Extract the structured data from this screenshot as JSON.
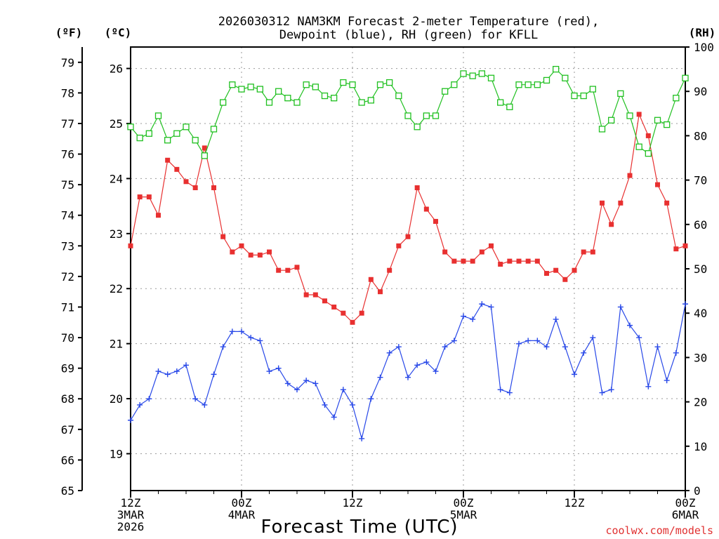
{
  "chart_data": {
    "type": "line",
    "title": [
      "2026030312 NAM3KM Forecast 2-meter Temperature (red),",
      "Dewpoint (blue), RH (green) for KFLL"
    ],
    "xlabel": "Forecast Time (UTC)",
    "x_range_hours": [
      0,
      60
    ],
    "x_ticks": [
      {
        "hour": 0,
        "lines": [
          "12Z",
          "3MAR",
          "2026"
        ]
      },
      {
        "hour": 12,
        "lines": [
          "00Z",
          "4MAR"
        ]
      },
      {
        "hour": 24,
        "lines": [
          "12Z"
        ]
      },
      {
        "hour": 36,
        "lines": [
          "00Z",
          "5MAR"
        ]
      },
      {
        "hour": 48,
        "lines": [
          "12Z"
        ]
      },
      {
        "hour": 60,
        "lines": [
          "00Z",
          "6MAR"
        ]
      }
    ],
    "axes": {
      "fahrenheit": {
        "unit_label": "(ºF)",
        "range": [
          65,
          79.5
        ],
        "ticks": [
          65,
          66,
          67,
          68,
          69,
          70,
          71,
          72,
          73,
          74,
          75,
          76,
          77,
          78,
          79
        ]
      },
      "celsius": {
        "unit_label": "(ºC)",
        "range": [
          18.33,
          26.39
        ],
        "ticks": [
          19,
          20,
          21,
          22,
          23,
          24,
          25,
          26
        ]
      },
      "rh": {
        "unit_label": "(RH)",
        "range": [
          0,
          100
        ],
        "ticks": [
          0,
          10,
          20,
          30,
          40,
          50,
          60,
          70,
          80,
          90,
          100
        ]
      }
    },
    "grid": true,
    "series": [
      {
        "name": "Temperature",
        "unit": "F",
        "color": "#e83030",
        "marker": "filled-square",
        "values": [
          73.0,
          74.6,
          74.6,
          74.0,
          75.8,
          75.5,
          75.1,
          74.9,
          76.2,
          74.9,
          73.3,
          72.8,
          73.0,
          72.7,
          72.7,
          72.8,
          72.2,
          72.2,
          72.3,
          71.4,
          71.4,
          71.2,
          71.0,
          70.8,
          70.5,
          70.8,
          71.9,
          71.5,
          72.2,
          73.0,
          73.3,
          74.9,
          74.2,
          73.8,
          72.8,
          72.5,
          72.5,
          72.5,
          72.8,
          73.0,
          72.4,
          72.5,
          72.5,
          72.5,
          72.5,
          72.1,
          72.2,
          71.9,
          72.2,
          72.8,
          72.8,
          74.4,
          73.7,
          74.4,
          75.3,
          77.3,
          76.6,
          75.0,
          74.4,
          72.9,
          73.0
        ]
      },
      {
        "name": "Dewpoint",
        "unit": "F",
        "color": "#2848e8",
        "marker": "plus",
        "values": [
          67.3,
          67.8,
          68.0,
          68.9,
          68.8,
          68.9,
          69.1,
          68.0,
          67.8,
          68.8,
          69.7,
          70.2,
          70.2,
          70.0,
          69.9,
          68.9,
          69.0,
          68.5,
          68.3,
          68.6,
          68.5,
          67.8,
          67.4,
          68.3,
          67.8,
          66.7,
          68.0,
          68.7,
          69.5,
          69.7,
          68.7,
          69.1,
          69.2,
          68.9,
          69.7,
          69.9,
          70.7,
          70.6,
          71.1,
          71.0,
          68.3,
          68.2,
          69.8,
          69.9,
          69.9,
          69.7,
          70.6,
          69.7,
          68.8,
          69.5,
          70.0,
          68.2,
          68.3,
          71.0,
          70.4,
          70.0,
          68.4,
          69.7,
          68.6,
          69.5,
          71.1
        ]
      },
      {
        "name": "RH",
        "unit": "%",
        "color": "#20c020",
        "marker": "open-square",
        "values": [
          82,
          79.5,
          80.5,
          84.5,
          79,
          80.5,
          82,
          79,
          75.5,
          81.5,
          87.5,
          91.5,
          90.5,
          91,
          90.5,
          87.5,
          90,
          88.5,
          87.5,
          91.5,
          91,
          89,
          88.5,
          92,
          91.5,
          87.5,
          88,
          91.5,
          92,
          89,
          84.5,
          82,
          84.5,
          84.5,
          90,
          91.5,
          94,
          93.5,
          94,
          93,
          87.5,
          86.5,
          91.5,
          91.5,
          91.5,
          92.5,
          95,
          93,
          89,
          89,
          90.5,
          81.5,
          83.5,
          89.5,
          84.5,
          77.5,
          76,
          83.5,
          82.5,
          88.5,
          93
        ]
      }
    ]
  },
  "watermark": "coolwx.com/models"
}
